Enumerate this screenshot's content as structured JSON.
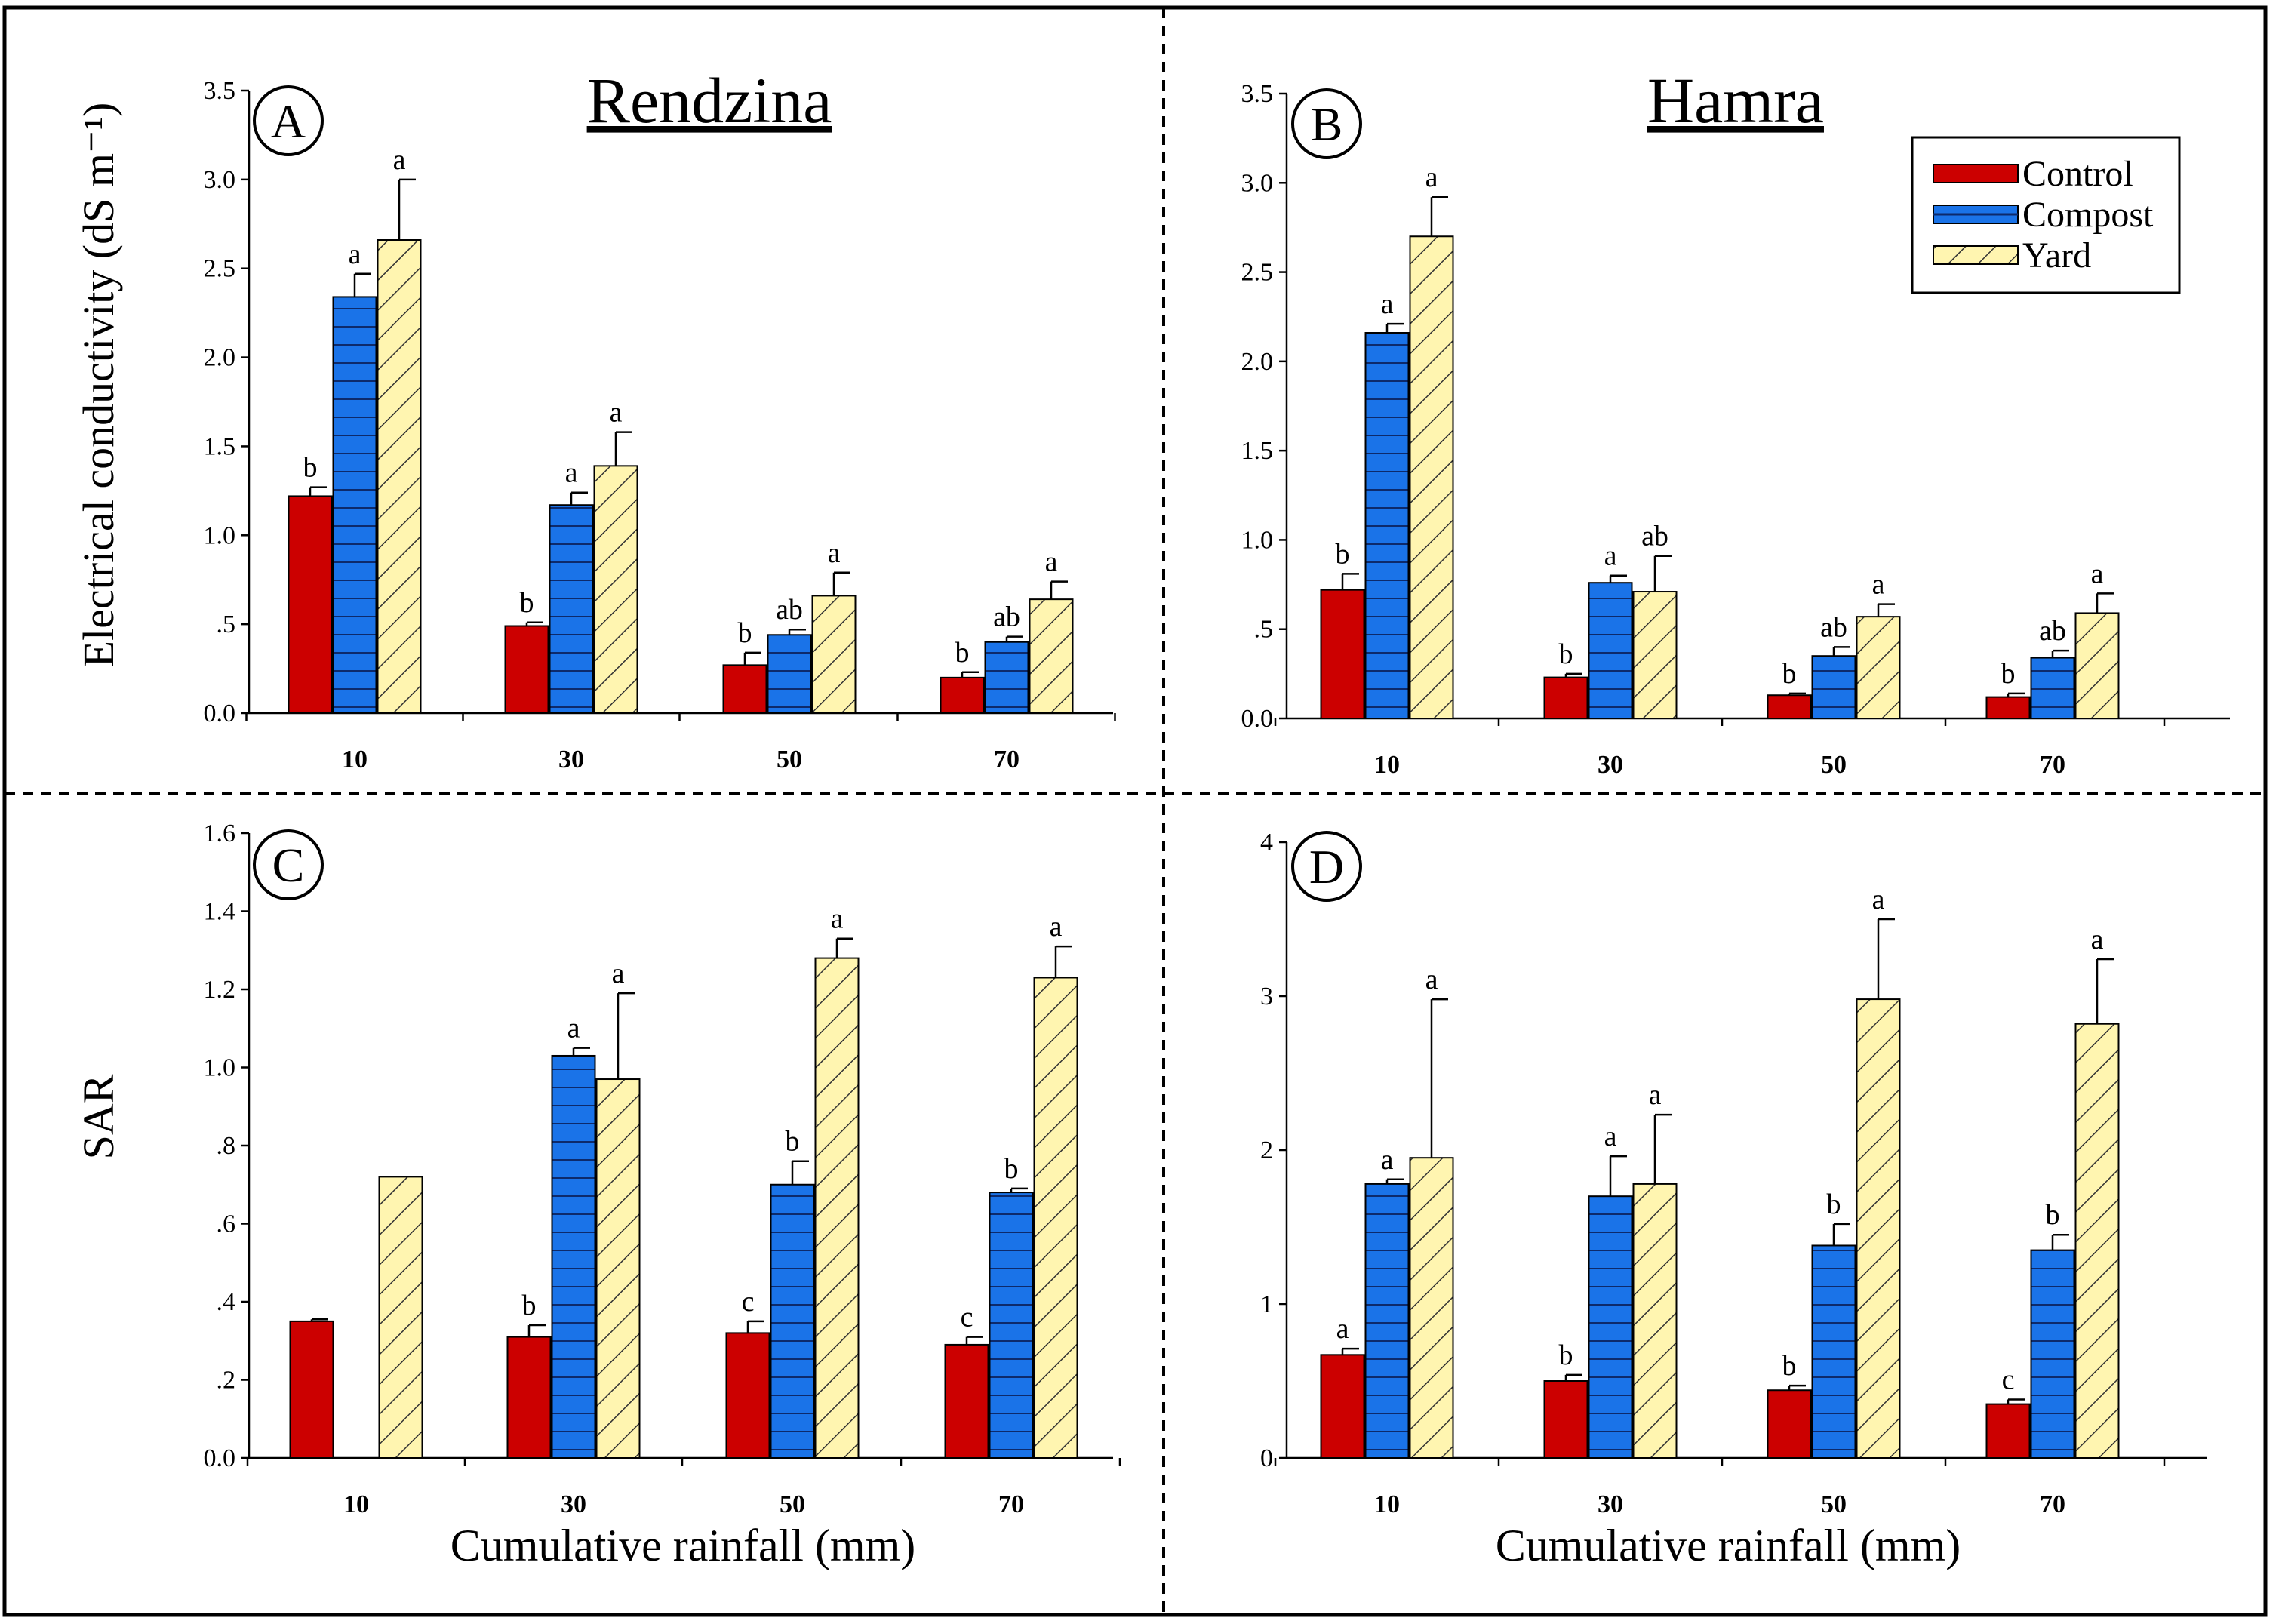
{
  "colors": {
    "control": "#cc0000",
    "compost": "#1a73e8",
    "yard": "#fff5b0",
    "yard_hatch": "#333333",
    "compost_line": "#0d2a6b"
  },
  "legend": [
    "Control",
    "Compost",
    "Yard"
  ],
  "chart_data": [
    {
      "panel": "A",
      "type": "bar",
      "title": "Rendzina",
      "ylabel": "Electrical conductivity (dS m⁻¹)",
      "xlabel": "",
      "categories": [
        "10",
        "30",
        "50",
        "70"
      ],
      "ylim": [
        0,
        3.5
      ],
      "yticks": [
        0,
        0.5,
        1.0,
        1.5,
        2.0,
        2.5,
        3.0,
        3.5
      ],
      "ytick_labels": [
        "0.0",
        ".5",
        "1.0",
        "1.5",
        "2.0",
        "2.5",
        "3.0",
        "3.5"
      ],
      "series": [
        {
          "name": "Control",
          "values": [
            1.22,
            0.49,
            0.27,
            0.2
          ],
          "errors": [
            0.05,
            0.02,
            0.07,
            0.03
          ],
          "letters": [
            "b",
            "b",
            "b",
            "b"
          ]
        },
        {
          "name": "Compost",
          "values": [
            2.34,
            1.17,
            0.44,
            0.4
          ],
          "errors": [
            0.13,
            0.07,
            0.03,
            0.03
          ],
          "letters": [
            "a",
            "a",
            "ab",
            "ab"
          ]
        },
        {
          "name": "Yard",
          "values": [
            2.66,
            1.39,
            0.66,
            0.64
          ],
          "errors": [
            0.34,
            0.19,
            0.13,
            0.1
          ],
          "letters": [
            "a",
            "a",
            "a",
            "a"
          ]
        }
      ]
    },
    {
      "panel": "B",
      "type": "bar",
      "title": "Hamra",
      "ylabel": "",
      "xlabel": "",
      "categories": [
        "10",
        "30",
        "50",
        "70"
      ],
      "ylim": [
        0,
        3.5
      ],
      "yticks": [
        0,
        0.5,
        1.0,
        1.5,
        2.0,
        2.5,
        3.0,
        3.5
      ],
      "ytick_labels": [
        "0.0",
        ".5",
        "1.0",
        "1.5",
        "2.0",
        "2.5",
        "3.0",
        "3.5"
      ],
      "series": [
        {
          "name": "Control",
          "values": [
            0.72,
            0.23,
            0.13,
            0.12
          ],
          "errors": [
            0.09,
            0.02,
            0.01,
            0.02
          ],
          "letters": [
            "b",
            "b",
            "b",
            "b"
          ]
        },
        {
          "name": "Compost",
          "values": [
            2.16,
            0.76,
            0.35,
            0.34
          ],
          "errors": [
            0.05,
            0.04,
            0.05,
            0.04
          ],
          "letters": [
            "a",
            "a",
            "ab",
            "ab"
          ]
        },
        {
          "name": "Yard",
          "values": [
            2.7,
            0.71,
            0.57,
            0.59
          ],
          "errors": [
            0.22,
            0.2,
            0.07,
            0.11
          ],
          "letters": [
            "a",
            "ab",
            "a",
            "a"
          ]
        }
      ]
    },
    {
      "panel": "C",
      "type": "bar",
      "title": "",
      "ylabel": "SAR",
      "xlabel": "Cumulative rainfall (mm)",
      "categories": [
        "10",
        "30",
        "50",
        "70"
      ],
      "ylim": [
        0,
        1.6
      ],
      "yticks": [
        0,
        0.2,
        0.4,
        0.6,
        0.8,
        1.0,
        1.2,
        1.4,
        1.6
      ],
      "ytick_labels": [
        "0.0",
        ".2",
        ".4",
        ".6",
        ".8",
        "1.0",
        "1.2",
        "1.4",
        "1.6"
      ],
      "series": [
        {
          "name": "Control",
          "values": [
            0.35,
            0.31,
            0.32,
            0.29
          ],
          "errors": [
            0.005,
            0.03,
            0.03,
            0.02
          ],
          "letters": [
            "",
            "b",
            "c",
            "c"
          ]
        },
        {
          "name": "Compost",
          "values": [
            null,
            1.03,
            0.7,
            0.68
          ],
          "errors": [
            null,
            0.02,
            0.06,
            0.01
          ],
          "letters": [
            "",
            "a",
            "b",
            "b"
          ]
        },
        {
          "name": "Yard",
          "values": [
            0.72,
            0.97,
            1.28,
            1.23
          ],
          "errors": [
            0,
            0.22,
            0.05,
            0.08
          ],
          "letters": [
            "",
            "a",
            "a",
            "a"
          ]
        }
      ]
    },
    {
      "panel": "D",
      "type": "bar",
      "title": "",
      "ylabel": "",
      "xlabel": "Cumulative rainfall (mm)",
      "categories": [
        "10",
        "30",
        "50",
        "70"
      ],
      "ylim": [
        0,
        4
      ],
      "yticks": [
        0,
        1,
        2,
        3,
        4
      ],
      "ytick_labels": [
        "0",
        "1",
        "2",
        "3",
        "4"
      ],
      "series": [
        {
          "name": "Control",
          "values": [
            0.67,
            0.5,
            0.44,
            0.35
          ],
          "errors": [
            0.04,
            0.04,
            0.03,
            0.03
          ],
          "letters": [
            "a",
            "b",
            "b",
            "c"
          ]
        },
        {
          "name": "Compost",
          "values": [
            1.78,
            1.7,
            1.38,
            1.35
          ],
          "errors": [
            0.03,
            0.26,
            0.14,
            0.1
          ],
          "letters": [
            "a",
            "a",
            "b",
            "b"
          ]
        },
        {
          "name": "Yard",
          "values": [
            1.95,
            1.78,
            2.98,
            2.82
          ],
          "errors": [
            1.03,
            0.45,
            0.52,
            0.42
          ],
          "letters": [
            "a",
            "a",
            "a",
            "a"
          ]
        }
      ]
    }
  ]
}
